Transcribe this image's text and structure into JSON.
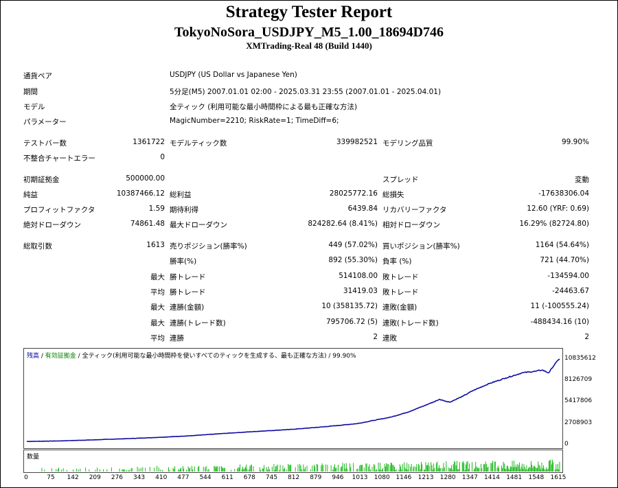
{
  "header": {
    "title": "Strategy Tester Report",
    "subtitle": "TokyoNoSora_USDJPY_M5_1.00_18694D746",
    "server": "XMTrading-Real 48 (Build 1440)"
  },
  "info": {
    "symbol_label": "通貨ペア",
    "symbol_value": "USDJPY (US Dollar vs Japanese Yen)",
    "period_label": "期間",
    "period_value": "5分足(M5) 2007.01.01 02:00 - 2025.03.31 23:55 (2007.01.01 - 2025.04.01)",
    "model_label": "モデル",
    "model_value": "全ティック (利用可能な最小時間枠による最も正確な方法)",
    "params_label": "パラメーター",
    "params_value": "MagicNumber=2210; RiskRate=1; TimeDiff=6;"
  },
  "bars": {
    "bars_label": "テストバー数",
    "bars_value": "1361722",
    "ticks_label": "モデルティック数",
    "ticks_value": "339982521",
    "quality_label": "モデリング品質",
    "quality_value": "99.90%",
    "errors_label": "不整合チャートエラー",
    "errors_value": "0"
  },
  "stats": {
    "deposit_label": "初期証拠金",
    "deposit_value": "500000.00",
    "spread_label": "スプレッド",
    "spread_value": "変動",
    "net_label": "純益",
    "net_value": "10387466.12",
    "gross_profit_label": "総利益",
    "gross_profit_value": "28025772.16",
    "gross_loss_label": "総損失",
    "gross_loss_value": "-17638306.04",
    "pf_label": "プロフィットファクタ",
    "pf_value": "1.59",
    "expected_label": "期待利得",
    "expected_value": "6439.84",
    "recovery_label": "リカバリーファクタ",
    "recovery_value": "12.60 (YRF: 0.69)",
    "abs_dd_label": "絶対ドローダウン",
    "abs_dd_value": "74861.48",
    "max_dd_label": "最大ドローダウン",
    "max_dd_value": "824282.64 (8.41%)",
    "rel_dd_label": "相対ドローダウン",
    "rel_dd_value": "16.29% (82724.80)"
  },
  "trades": {
    "total_label": "総取引数",
    "total_value": "1613",
    "short_label": "売りポジション(勝率%)",
    "short_value": "449 (57.02%)",
    "long_label": "買いポジション(勝率%)",
    "long_value": "1164 (54.64%)",
    "win_rate_label": "勝率(%)",
    "win_rate_value": "892 (55.30%)",
    "loss_rate_label": "負率 (%)",
    "loss_rate_value": "721 (44.70%)",
    "max_label": "最大",
    "avg_label": "平均",
    "win_trade_label": "勝トレード",
    "max_win_value": "514108.00",
    "loss_trade_label": "敗トレード",
    "max_loss_value": "-134594.00",
    "avg_win_value": "31419.03",
    "avg_loss_value": "-24463.67",
    "consec_win_amt_label": "連勝(金額)",
    "consec_win_amt_value": "10 (358135.72)",
    "consec_loss_amt_label": "連敗(金額)",
    "consec_loss_amt_value": "11 (-100555.24)",
    "consec_win_cnt_label": "連勝(トレード数)",
    "consec_win_cnt_value": "795706.72 (5)",
    "consec_loss_cnt_label": "連敗(トレード数)",
    "consec_loss_cnt_value": "-488434.16 (10)",
    "avg_consec_win_label": "連勝",
    "avg_consec_win_value": "2",
    "avg_consec_loss_label": "連敗",
    "avg_consec_loss_value": "2"
  },
  "chart": {
    "legend_balance": "残高",
    "legend_sep1": " / ",
    "legend_equity": "有効証拠金",
    "legend_sep2": " / ",
    "legend_model": "全ティック(利用可能な最小時間枠を使いすべてのティックを生成する、最も正確な方法) / 99.90%",
    "volume_label": "数量",
    "colors": {
      "balance": "#0a0aa0",
      "volume": "#00b000"
    }
  },
  "chart_data": {
    "type": "line",
    "title": "",
    "xlabel": "",
    "ylabel": "",
    "x_ticks": [
      0,
      75,
      142,
      209,
      276,
      343,
      410,
      477,
      544,
      611,
      678,
      745,
      812,
      879,
      946,
      1013,
      1080,
      1146,
      1213,
      1280,
      1347,
      1414,
      1481,
      1548,
      1615
    ],
    "y_ticks": [
      0,
      2708903,
      5417806,
      8126709,
      10835612
    ],
    "xlim": [
      0,
      1613
    ],
    "ylim": [
      0,
      11500000
    ],
    "grid": false,
    "series": [
      {
        "name": "残高",
        "x": [
          0,
          100,
          200,
          300,
          400,
          500,
          600,
          700,
          800,
          900,
          1000,
          1050,
          1100,
          1150,
          1200,
          1250,
          1280,
          1320,
          1350,
          1400,
          1450,
          1500,
          1540,
          1560,
          1580,
          1600,
          1613
        ],
        "y": [
          500000,
          570000,
          700000,
          850000,
          1020000,
          1230000,
          1520000,
          1780000,
          2020000,
          2350000,
          2750000,
          3150000,
          3550000,
          4150000,
          4950000,
          5800000,
          5450000,
          6200000,
          6900000,
          7800000,
          8500000,
          9150000,
          9350000,
          9500000,
          9150000,
          10350000,
          10887466
        ]
      }
    ]
  }
}
